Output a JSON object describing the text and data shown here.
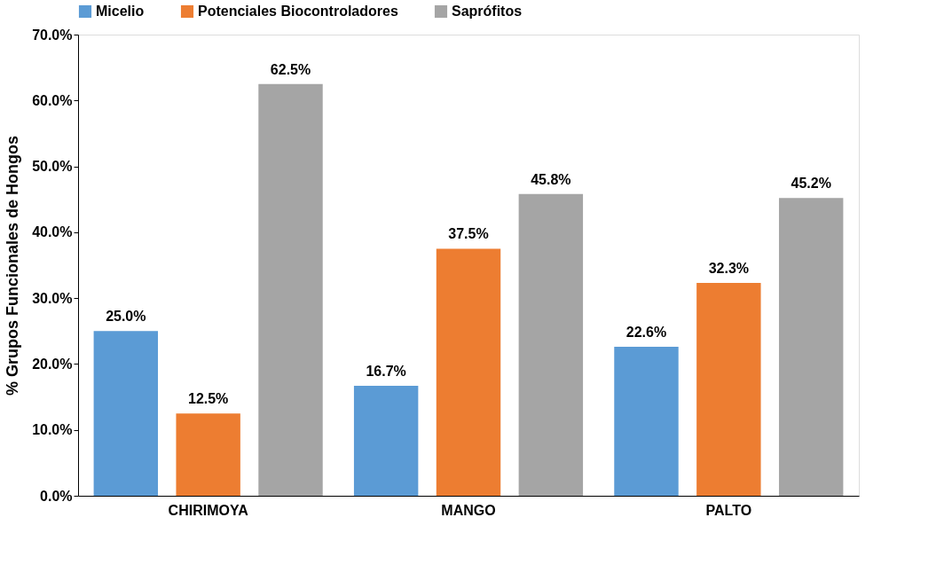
{
  "chart_data": {
    "type": "bar",
    "ylabel": "% Grupos Funcionales de Hongos",
    "categories": [
      "CHIRIMOYA",
      "MANGO",
      "PALTO"
    ],
    "series": [
      {
        "name": "Micelio",
        "color": "#5b9bd5",
        "values": [
          25.0,
          16.7,
          22.6
        ],
        "value_labels": [
          "25.0%",
          "16.7%",
          "22.6%"
        ]
      },
      {
        "name": "Potenciales Biocontroladores",
        "color": "#ed7d31",
        "values": [
          12.5,
          37.5,
          32.3
        ],
        "value_labels": [
          "12.5%",
          "37.5%",
          "32.3%"
        ]
      },
      {
        "name": "Saprófitos",
        "color": "#a5a5a5",
        "values": [
          62.5,
          45.8,
          45.2
        ],
        "value_labels": [
          "62.5%",
          "45.8%",
          "45.2%"
        ]
      }
    ],
    "ylim": [
      0,
      70
    ],
    "yticks": [
      {
        "value": 0,
        "label": "0.0%"
      },
      {
        "value": 10,
        "label": "10.0%"
      },
      {
        "value": 20,
        "label": "20.0%"
      },
      {
        "value": 30,
        "label": "30.0%"
      },
      {
        "value": 40,
        "label": "40.0%"
      },
      {
        "value": 50,
        "label": "50.0%"
      },
      {
        "value": 60,
        "label": "60.0%"
      },
      {
        "value": 70,
        "label": "70.0%"
      }
    ],
    "grid": false,
    "legend": "top"
  }
}
